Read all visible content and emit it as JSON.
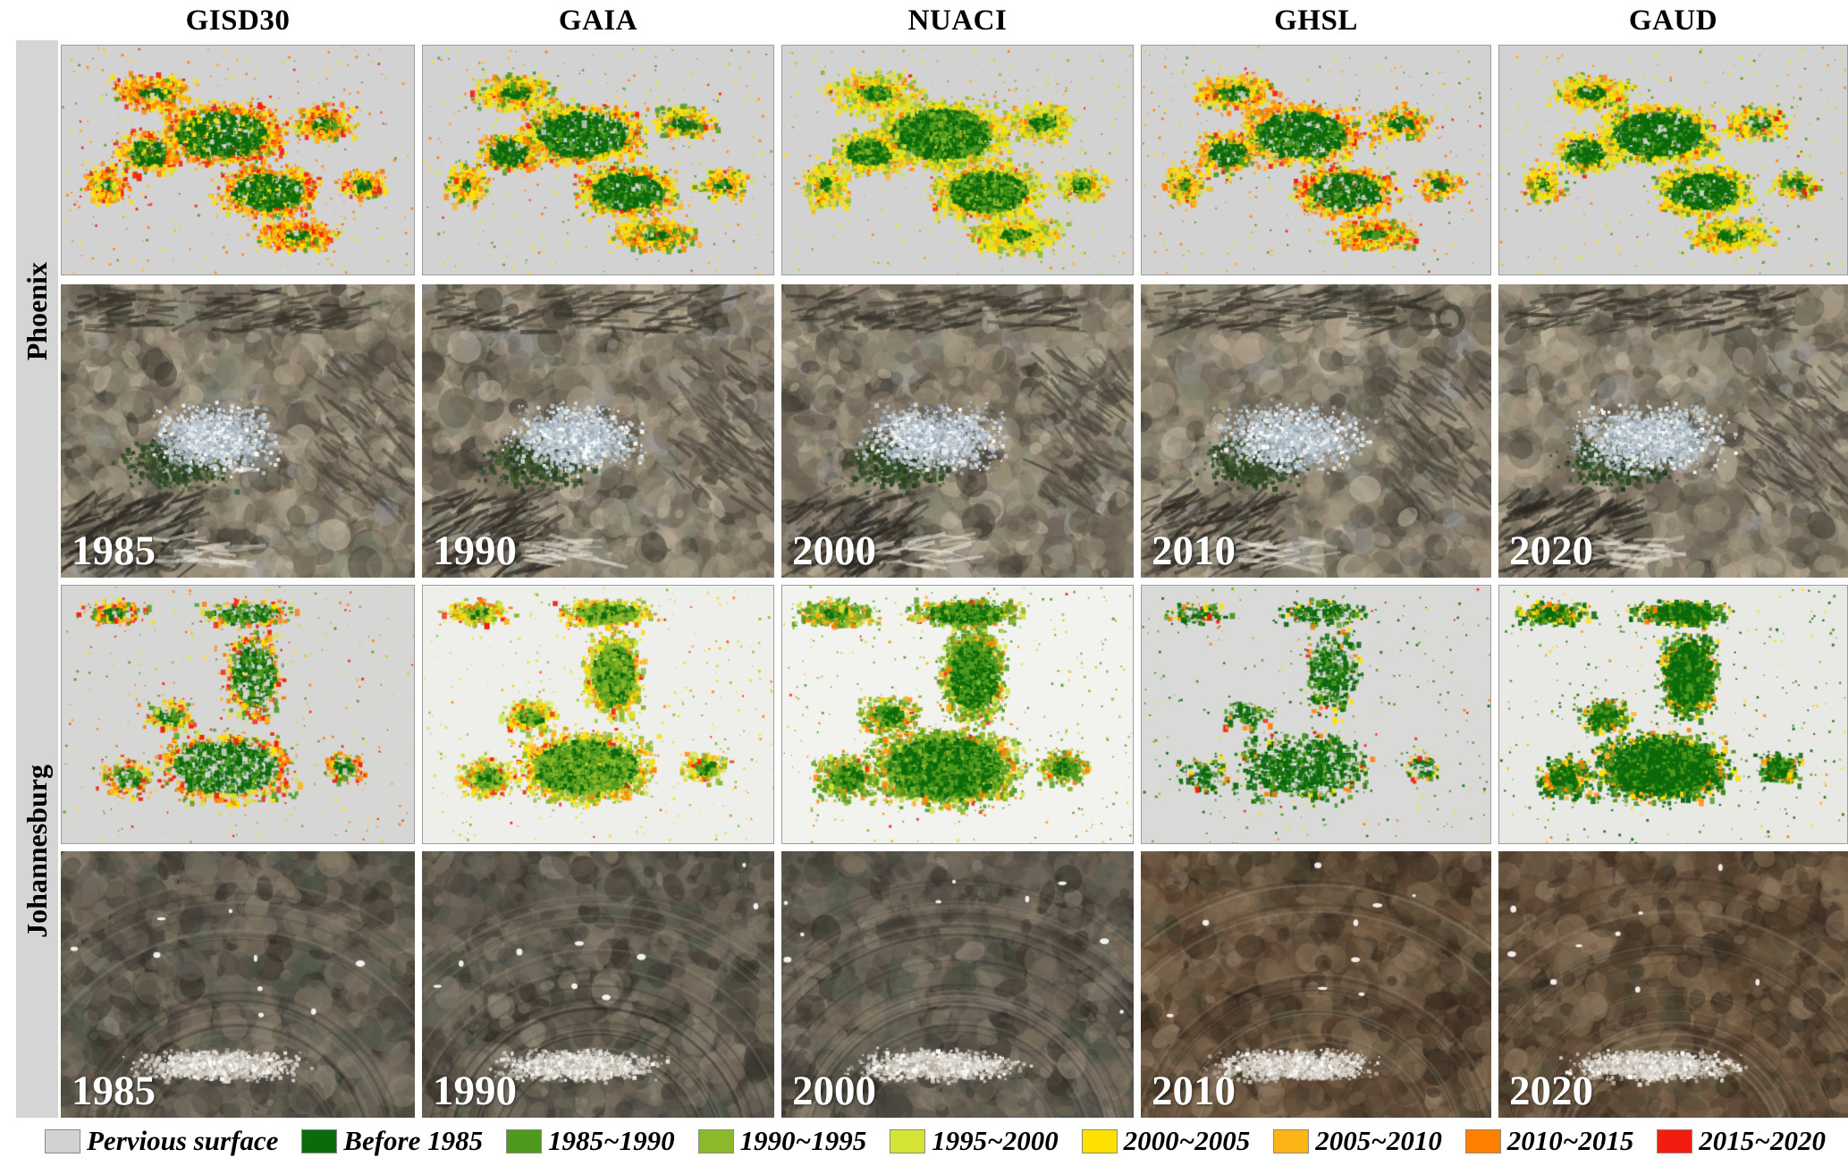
{
  "figure": {
    "columns": [
      "GISD30",
      "GAIA",
      "NUACI",
      "GHSL",
      "GAUD"
    ],
    "cities": [
      "Phoenix",
      "Johannesburg"
    ],
    "years": [
      "1985",
      "1990",
      "2000",
      "2010",
      "2020"
    ]
  },
  "legend": {
    "items": [
      {
        "label": "Pervious surface",
        "color": "#d2d2d2"
      },
      {
        "label": "Before 1985",
        "color": "#0b6a0b"
      },
      {
        "label": "1985~1990",
        "color": "#4f9a1e"
      },
      {
        "label": "1990~1995",
        "color": "#8cb82c"
      },
      {
        "label": "1995~2000",
        "color": "#d4e336"
      },
      {
        "label": "2000~2005",
        "color": "#ffe100"
      },
      {
        "label": "2005~2010",
        "color": "#fdb515"
      },
      {
        "label": "2010~2015",
        "color": "#ff8000"
      },
      {
        "label": "2015~2020",
        "color": "#f21d0f"
      }
    ]
  }
}
